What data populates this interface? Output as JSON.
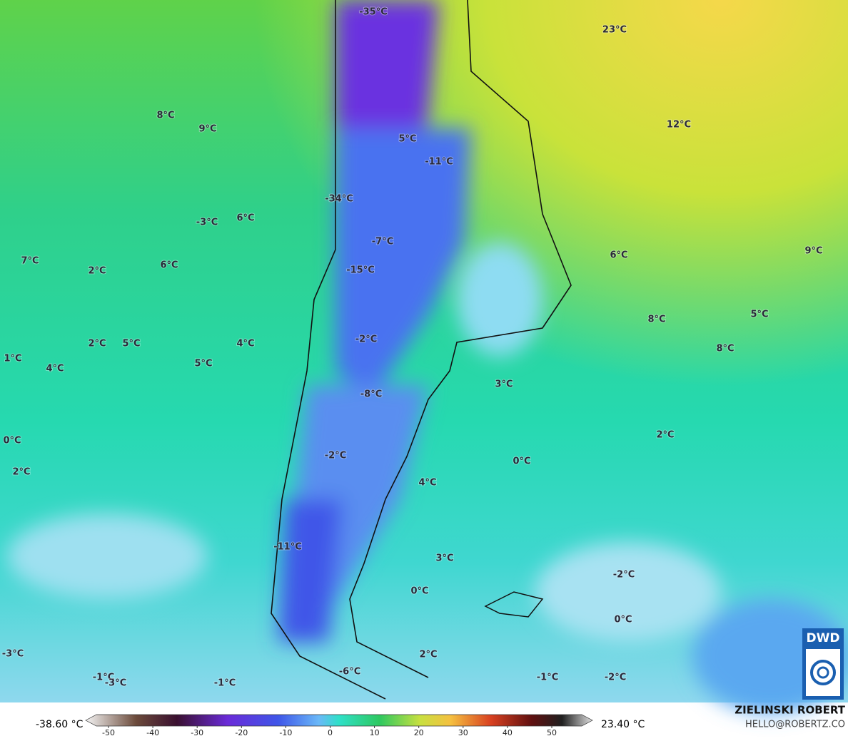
{
  "map": {
    "labels": [
      "-35°C",
      "23°C",
      "8°C",
      "9°C",
      "5°C",
      "-11°C",
      "12°C",
      "-34°C",
      "-3°C",
      "6°C",
      "-7°C",
      "7°C",
      "2°C",
      "6°C",
      "-15°C",
      "6°C",
      "9°C",
      "8°C",
      "5°C",
      "-2°C",
      "2°C",
      "5°C",
      "4°C",
      "1°C",
      "4°C",
      "5°C",
      "8°C",
      "3°C",
      "-8°C",
      "2°C",
      "0°C",
      "-2°C",
      "2°C",
      "0°C",
      "4°C",
      "-11°C",
      "3°C",
      "-2°C",
      "0°C",
      "0°C",
      "-3°C",
      "2°C",
      "-6°C",
      "-1°C",
      "-3°C",
      "-1°C",
      "-1°C",
      "-2°C"
    ],
    "logo": "DWD"
  },
  "colorbar": {
    "min_label": "-38.60 °C",
    "max_label": "23.40 °C",
    "ticks": [
      -50,
      -40,
      -30,
      -20,
      -10,
      0,
      10,
      20,
      30,
      40,
      50
    ]
  },
  "credit": {
    "name": "ZIELINSKI ROBERT",
    "contact": "HELLO@ROBERTZ.CO"
  }
}
